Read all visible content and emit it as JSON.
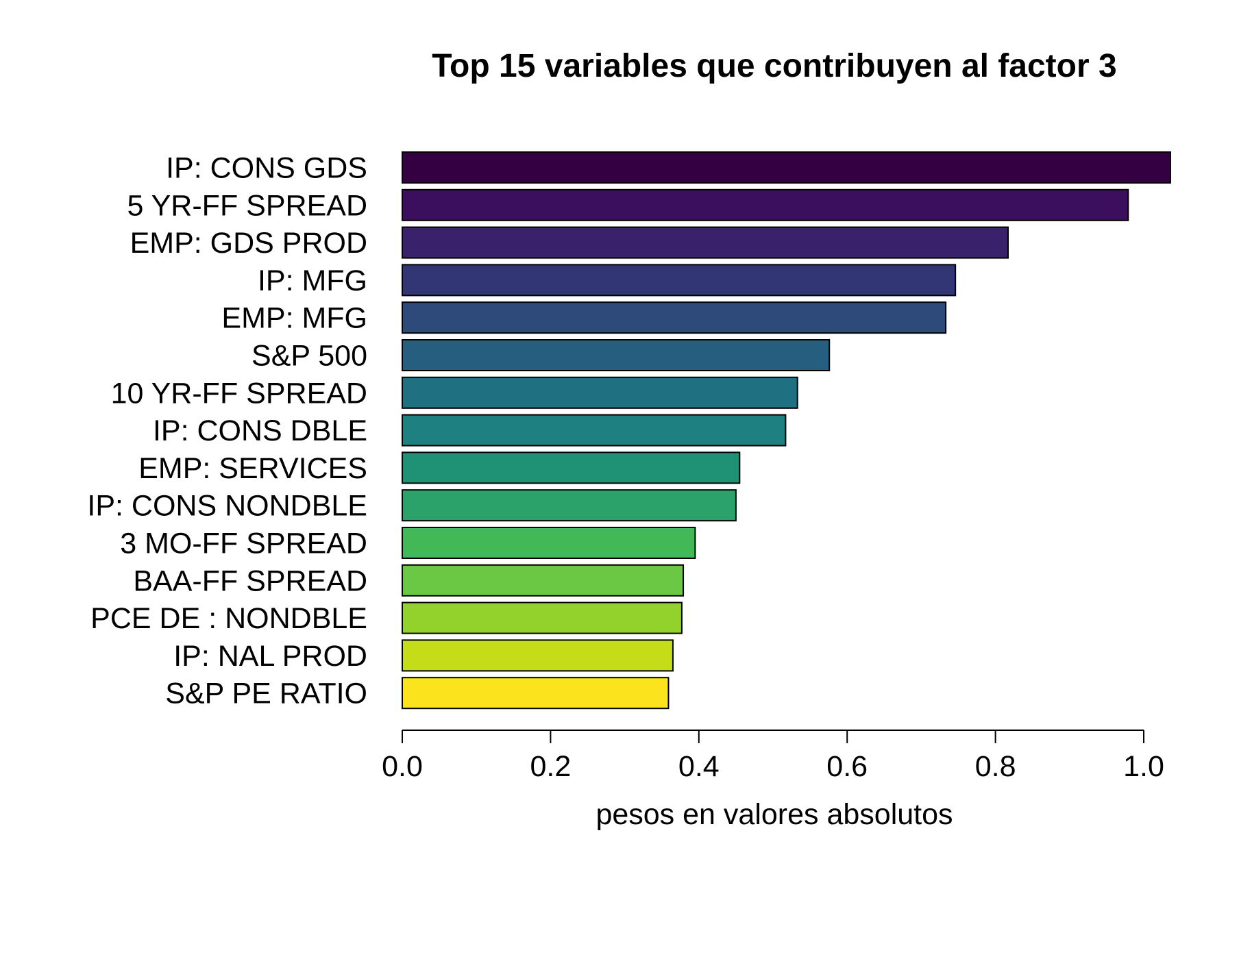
{
  "chart_data": {
    "type": "bar",
    "orientation": "horizontal",
    "title": "Top 15 variables que contribuyen al factor 3",
    "xlabel": "pesos en valores absolutos",
    "ylabel": "",
    "xlim": [
      0,
      1.0
    ],
    "xticks": [
      "0.0",
      "0.2",
      "0.4",
      "0.6",
      "0.8",
      "1.0"
    ],
    "grid": false,
    "categories": [
      "IP: CONS GDS",
      "5 YR-FF SPREAD",
      "EMP: GDS PROD",
      "IP: MFG",
      "EMP: MFG",
      "S&P 500",
      "10 YR-FF SPREAD",
      "IP: CONS DBLE",
      "EMP: SERVICES",
      "IP: CONS NONDBLE",
      "3 MO-FF SPREAD",
      "BAA-FF SPREAD",
      "PCE DE : NONDBLE",
      "IP: NAL PROD",
      "S&P PE RATIO"
    ],
    "values": [
      1.036,
      0.979,
      0.817,
      0.746,
      0.733,
      0.576,
      0.533,
      0.517,
      0.455,
      0.45,
      0.395,
      0.379,
      0.377,
      0.365,
      0.359
    ],
    "colors": [
      "#340042",
      "#3b0f5e",
      "#39216c",
      "#323674",
      "#2d4a7a",
      "#265e80",
      "#1f7080",
      "#1e8080",
      "#1f9276",
      "#2aa26a",
      "#43b857",
      "#6ac845",
      "#93d22c",
      "#c5dd18",
      "#fbe41d"
    ]
  }
}
